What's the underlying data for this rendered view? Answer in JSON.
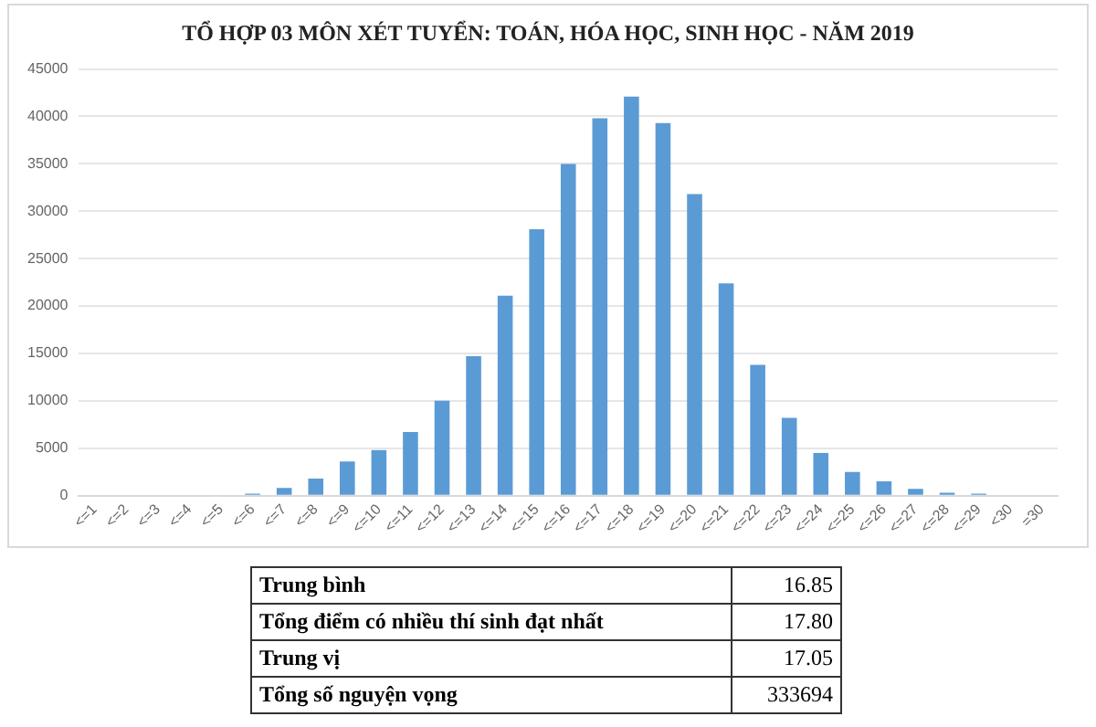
{
  "chart_data": {
    "type": "bar",
    "title": "TỔ HỢP 03 MÔN XÉT TUYỂN: TOÁN, HÓA HỌC, SINH HỌC - NĂM 2019",
    "categories": [
      "<=1",
      "<=2",
      "<=3",
      "<=4",
      "<=5",
      "<=6",
      "<=7",
      "<=8",
      "<=9",
      "<=10",
      "<=11",
      "<=12",
      "<=13",
      "<=14",
      "<=15",
      "<=16",
      "<=17",
      "<=18",
      "<=19",
      "<=20",
      "<=21",
      "<=22",
      "<=23",
      "<=24",
      "<=25",
      "<=26",
      "<=27",
      "<=28",
      "<=29",
      "<30",
      "=30"
    ],
    "values": [
      0,
      0,
      0,
      0,
      0,
      200,
      800,
      1800,
      3600,
      4800,
      6700,
      10000,
      14700,
      21100,
      28100,
      35000,
      39800,
      42100,
      39300,
      31800,
      22400,
      13800,
      8200,
      4500,
      2500,
      1500,
      700,
      300,
      200,
      0,
      0
    ],
    "color": "#5b9bd5",
    "ylim": [
      0,
      45000
    ],
    "yticks": [
      0,
      5000,
      10000,
      15000,
      20000,
      25000,
      30000,
      35000,
      40000,
      45000
    ],
    "grid": "y",
    "annotations": [
      "Trung bình",
      "16.85",
      "Tổng điểm có nhiều thí sinh đạt nhất",
      "17.80",
      "Trung vị",
      "17.05",
      "Tổng số nguyện vọng",
      "333694"
    ]
  }
}
